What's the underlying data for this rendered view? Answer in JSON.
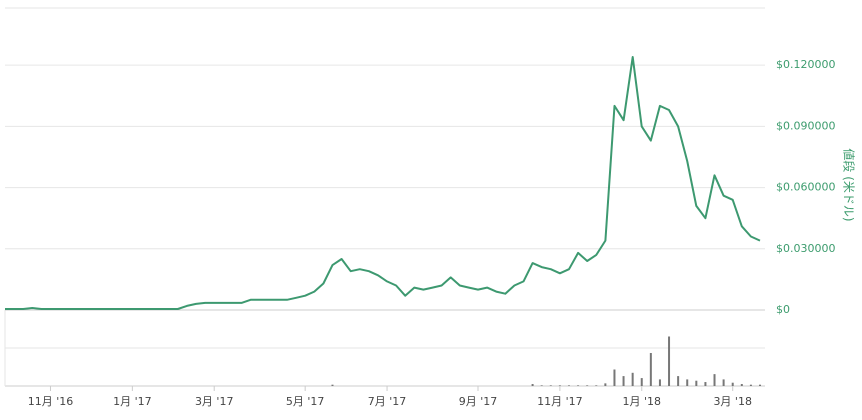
{
  "chart_data": {
    "type": "line",
    "y_axis_label": "値段 (米ドル)",
    "color": "#3d9970",
    "categories": [
      null,
      null,
      null,
      null,
      null,
      "11月 '16",
      null,
      null,
      null,
      null,
      null,
      null,
      null,
      null,
      "1月 '17",
      null,
      null,
      null,
      null,
      null,
      null,
      null,
      null,
      "3月 '17",
      null,
      null,
      null,
      null,
      null,
      null,
      null,
      null,
      null,
      "5月 '17",
      null,
      null,
      null,
      null,
      null,
      null,
      null,
      null,
      "7月 '17",
      null,
      null,
      null,
      null,
      null,
      null,
      null,
      null,
      null,
      "9月 '17",
      null,
      null,
      null,
      null,
      null,
      null,
      null,
      null,
      "11月 '17",
      null,
      null,
      null,
      null,
      null,
      null,
      null,
      null,
      "1月 '18",
      null,
      null,
      null,
      null,
      null,
      null,
      null,
      null,
      null,
      "3月 '18",
      null,
      null,
      null
    ],
    "values": [
      0.0005,
      0.0005,
      0.0005,
      0.001,
      0.0005,
      0.0005,
      0.0005,
      0.0005,
      0.0005,
      0.0005,
      0.0005,
      0.0005,
      0.0005,
      0.0005,
      0.0005,
      0.0005,
      0.0005,
      0.0005,
      0.0005,
      0.0005,
      0.002,
      0.003,
      0.0035,
      0.0035,
      0.0035,
      0.0035,
      0.0035,
      0.005,
      0.005,
      0.005,
      0.005,
      0.005,
      0.006,
      0.007,
      0.009,
      0.013,
      0.022,
      0.025,
      0.019,
      0.02,
      0.019,
      0.017,
      0.014,
      0.012,
      0.007,
      0.011,
      0.01,
      0.011,
      0.012,
      0.016,
      0.012,
      0.011,
      0.01,
      0.011,
      0.009,
      0.008,
      0.012,
      0.014,
      0.023,
      0.021,
      0.02,
      0.018,
      0.02,
      0.028,
      0.024,
      0.027,
      0.034,
      0.1,
      0.093,
      0.124,
      0.09,
      0.083,
      0.1,
      0.098,
      0.09,
      0.073,
      0.051,
      0.045,
      0.066,
      0.056,
      0.054,
      0.041,
      0.036,
      0.034
    ],
    "volume": [
      0,
      0,
      0,
      0,
      0,
      0,
      0,
      0,
      0,
      0,
      0,
      0,
      0,
      0,
      0,
      0,
      0,
      0,
      0,
      0,
      0,
      0,
      0,
      0,
      0,
      0,
      0,
      0,
      0,
      0,
      0,
      0,
      0,
      0,
      0,
      0,
      2,
      0,
      0,
      0,
      0,
      0,
      0,
      0,
      0,
      0,
      0,
      0,
      0,
      0,
      0,
      0,
      0,
      0,
      0,
      0,
      0,
      0,
      3,
      1,
      1,
      1,
      1,
      1,
      1,
      1,
      4,
      25,
      15,
      20,
      12,
      50,
      10,
      75,
      15,
      10,
      8,
      6,
      18,
      10,
      5,
      3,
      2,
      2
    ],
    "volume_color": "#777777",
    "volume_ylim": [
      0,
      100
    ],
    "ylim": [
      0,
      0.148
    ],
    "yticks": [
      {
        "value": 0,
        "label": "$0"
      },
      {
        "value": 0.03,
        "label": "$0.030000"
      },
      {
        "value": 0.06,
        "label": "$0.060000"
      },
      {
        "value": 0.09,
        "label": "$0.090000"
      },
      {
        "value": 0.12,
        "label": "$0.120000"
      }
    ],
    "grid": true
  }
}
